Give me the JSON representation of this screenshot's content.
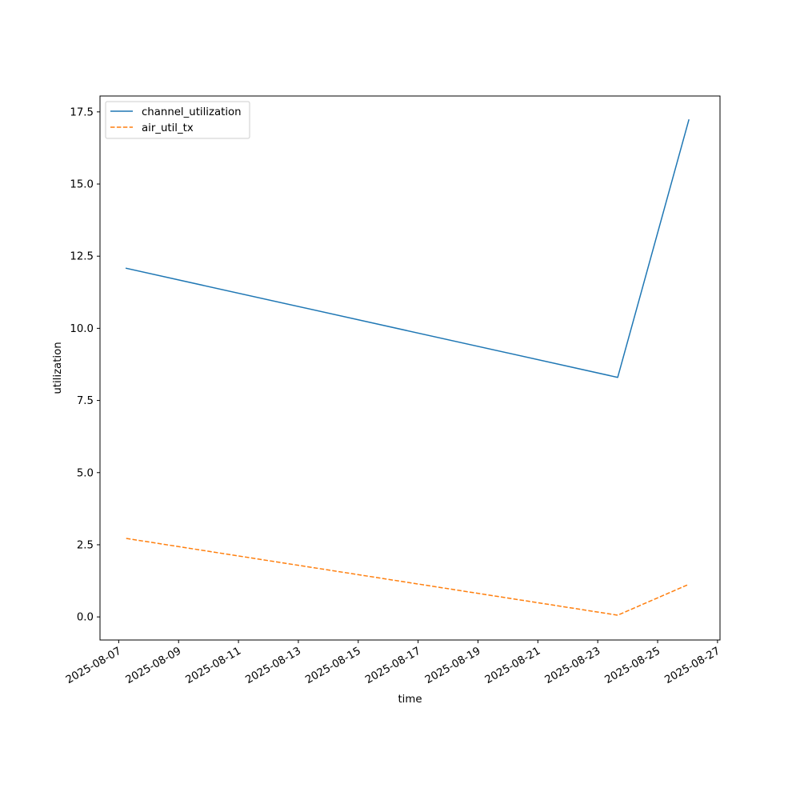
{
  "chart_data": {
    "type": "line",
    "title": "",
    "xlabel": "time",
    "ylabel": "utilization",
    "x_type": "date",
    "xlim": [
      "2025-08-06T09:00:00",
      "2025-08-27T02:00:00"
    ],
    "ylim": [
      -0.8,
      18.05
    ],
    "x_ticks": [
      "2025-08-07",
      "2025-08-09",
      "2025-08-11",
      "2025-08-13",
      "2025-08-15",
      "2025-08-17",
      "2025-08-19",
      "2025-08-21",
      "2025-08-23",
      "2025-08-25",
      "2025-08-27"
    ],
    "y_ticks": [
      0.0,
      2.5,
      5.0,
      7.5,
      10.0,
      12.5,
      15.0,
      17.5
    ],
    "y_tick_labels": [
      "0.0",
      "2.5",
      "5.0",
      "7.5",
      "10.0",
      "12.5",
      "15.0",
      "17.5"
    ],
    "grid": false,
    "legend_position": "top-left",
    "series": [
      {
        "name": "channel_utilization",
        "color": "#1f77b4",
        "style": "solid",
        "x": [
          "2025-08-07T06:00:00",
          "2025-08-23T16:00:00",
          "2025-08-26T01:00:00"
        ],
        "y": [
          12.08,
          8.3,
          17.22
        ]
      },
      {
        "name": "air_util_tx",
        "color": "#ff7f0e",
        "style": "dashed",
        "x": [
          "2025-08-07T06:00:00",
          "2025-08-23T16:00:00",
          "2025-08-26T01:00:00"
        ],
        "y": [
          2.72,
          0.06,
          1.13
        ]
      }
    ]
  }
}
